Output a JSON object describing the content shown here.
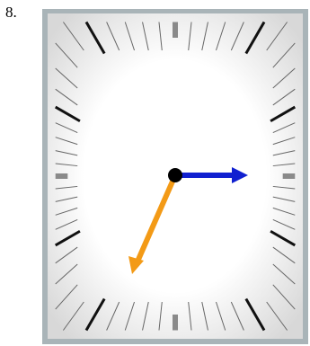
{
  "label": "8."
}
